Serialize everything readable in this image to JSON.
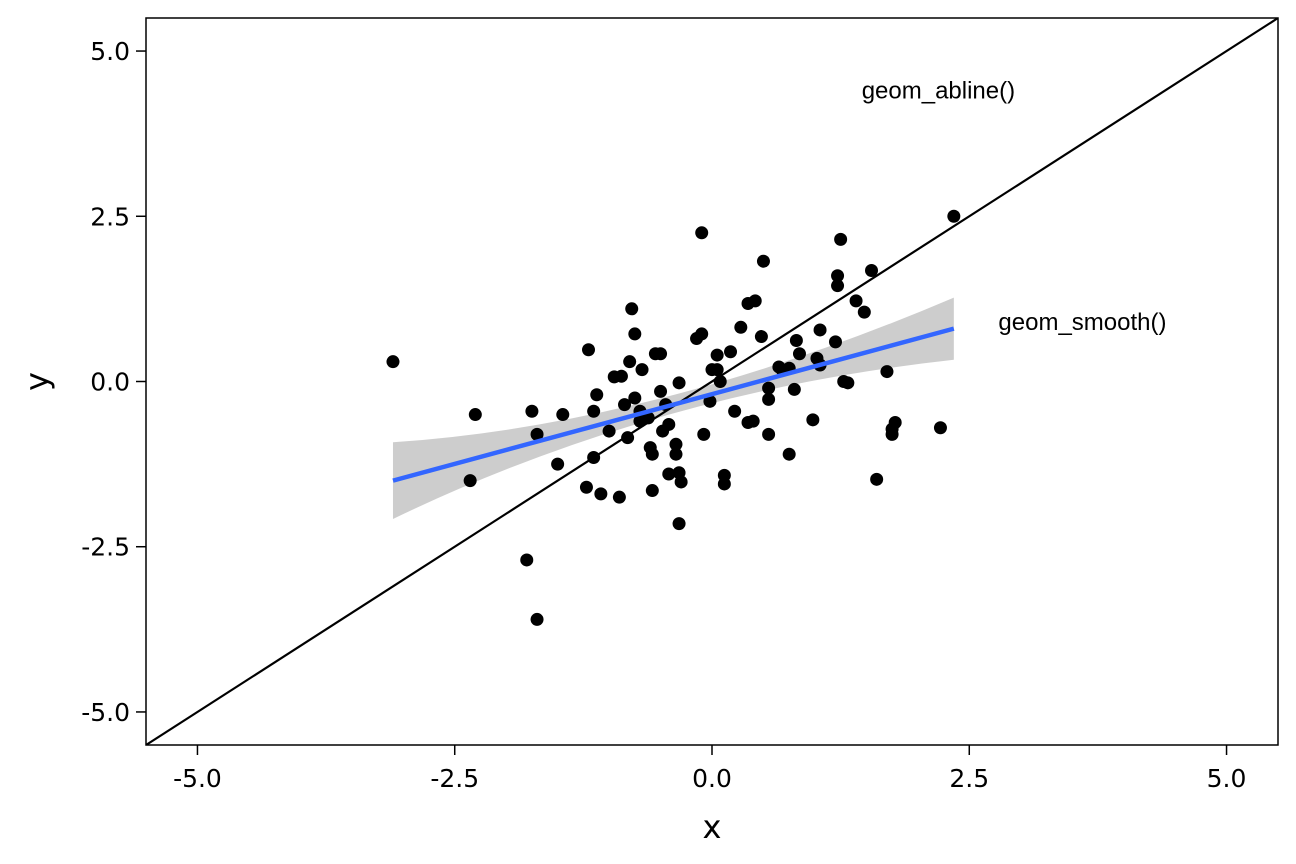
{
  "chart_data": {
    "type": "scatter",
    "title": "",
    "xlabel": "x",
    "ylabel": "y",
    "xlim": [
      -5.5,
      5.5
    ],
    "ylim": [
      -5.5,
      5.5
    ],
    "x_ticks": [
      -5.0,
      -2.5,
      0.0,
      2.5,
      5.0
    ],
    "y_ticks": [
      -5.0,
      -2.5,
      0.0,
      2.5,
      5.0
    ],
    "x_tick_labels": [
      "-5.0",
      "-2.5",
      "0.0",
      "2.5",
      "5.0"
    ],
    "y_tick_labels": [
      "-5.0",
      "-2.5",
      "0.0",
      "2.5",
      "5.0"
    ],
    "grid": false,
    "points": [
      {
        "x": -3.1,
        "y": 0.3
      },
      {
        "x": -2.3,
        "y": -0.5
      },
      {
        "x": -2.35,
        "y": -1.5
      },
      {
        "x": -1.8,
        "y": -2.7
      },
      {
        "x": -1.7,
        "y": -3.6
      },
      {
        "x": -1.75,
        "y": -0.45
      },
      {
        "x": -1.7,
        "y": -0.8
      },
      {
        "x": -1.45,
        "y": -0.5
      },
      {
        "x": -1.5,
        "y": -1.25
      },
      {
        "x": -1.2,
        "y": 0.48
      },
      {
        "x": -1.15,
        "y": -0.45
      },
      {
        "x": -1.15,
        "y": -1.15
      },
      {
        "x": -1.12,
        "y": -0.2
      },
      {
        "x": -1.22,
        "y": -1.6
      },
      {
        "x": -1.08,
        "y": -1.7
      },
      {
        "x": -1.0,
        "y": -0.75
      },
      {
        "x": -0.95,
        "y": 0.07
      },
      {
        "x": -0.88,
        "y": 0.08
      },
      {
        "x": -0.9,
        "y": -1.75
      },
      {
        "x": -0.85,
        "y": -0.35
      },
      {
        "x": -0.82,
        "y": -0.85
      },
      {
        "x": -0.8,
        "y": 0.3
      },
      {
        "x": -0.78,
        "y": 1.1
      },
      {
        "x": -0.75,
        "y": 0.72
      },
      {
        "x": -0.75,
        "y": -0.25
      },
      {
        "x": -0.7,
        "y": -0.45
      },
      {
        "x": -0.7,
        "y": -0.6
      },
      {
        "x": -0.68,
        "y": 0.18
      },
      {
        "x": -0.62,
        "y": -0.55
      },
      {
        "x": -0.6,
        "y": -1.0
      },
      {
        "x": -0.58,
        "y": -1.1
      },
      {
        "x": -0.58,
        "y": -1.65
      },
      {
        "x": -0.55,
        "y": 0.42
      },
      {
        "x": -0.5,
        "y": 0.42
      },
      {
        "x": -0.5,
        "y": -0.15
      },
      {
        "x": -0.48,
        "y": -0.75
      },
      {
        "x": -0.45,
        "y": -0.35
      },
      {
        "x": -0.42,
        "y": -1.4
      },
      {
        "x": -0.42,
        "y": -0.65
      },
      {
        "x": -0.35,
        "y": -0.95
      },
      {
        "x": -0.35,
        "y": -1.1
      },
      {
        "x": -0.32,
        "y": -1.38
      },
      {
        "x": -0.3,
        "y": -1.52
      },
      {
        "x": -0.32,
        "y": -2.15
      },
      {
        "x": -0.32,
        "y": -0.02
      },
      {
        "x": -0.15,
        "y": 0.65
      },
      {
        "x": -0.1,
        "y": 2.25
      },
      {
        "x": -0.1,
        "y": 0.72
      },
      {
        "x": -0.08,
        "y": -0.8
      },
      {
        "x": -0.02,
        "y": -0.3
      },
      {
        "x": 0.0,
        "y": 0.18
      },
      {
        "x": 0.05,
        "y": 0.4
      },
      {
        "x": 0.05,
        "y": 0.18
      },
      {
        "x": 0.08,
        "y": 0.0
      },
      {
        "x": 0.12,
        "y": -1.42
      },
      {
        "x": 0.12,
        "y": -1.55
      },
      {
        "x": 0.18,
        "y": 0.45
      },
      {
        "x": 0.22,
        "y": -0.45
      },
      {
        "x": 0.28,
        "y": 0.82
      },
      {
        "x": 0.35,
        "y": 1.18
      },
      {
        "x": 0.35,
        "y": -0.62
      },
      {
        "x": 0.4,
        "y": -0.6
      },
      {
        "x": 0.42,
        "y": 1.22
      },
      {
        "x": 0.48,
        "y": 0.68
      },
      {
        "x": 0.5,
        "y": 1.82
      },
      {
        "x": 0.55,
        "y": -0.1
      },
      {
        "x": 0.55,
        "y": -0.27
      },
      {
        "x": 0.55,
        "y": -0.8
      },
      {
        "x": 0.65,
        "y": 0.22
      },
      {
        "x": 0.68,
        "y": 0.18
      },
      {
        "x": 0.75,
        "y": 0.2
      },
      {
        "x": 0.75,
        "y": -1.1
      },
      {
        "x": 0.8,
        "y": -0.12
      },
      {
        "x": 0.82,
        "y": 0.62
      },
      {
        "x": 0.85,
        "y": 0.42
      },
      {
        "x": 0.98,
        "y": -0.58
      },
      {
        "x": 1.02,
        "y": 0.35
      },
      {
        "x": 1.05,
        "y": 0.25
      },
      {
        "x": 1.05,
        "y": 0.78
      },
      {
        "x": 1.2,
        "y": 0.6
      },
      {
        "x": 1.22,
        "y": 1.6
      },
      {
        "x": 1.22,
        "y": 1.45
      },
      {
        "x": 1.25,
        "y": 2.15
      },
      {
        "x": 1.28,
        "y": 0.0
      },
      {
        "x": 1.32,
        "y": -0.02
      },
      {
        "x": 1.4,
        "y": 1.22
      },
      {
        "x": 1.48,
        "y": 1.05
      },
      {
        "x": 1.55,
        "y": 1.68
      },
      {
        "x": 1.6,
        "y": -1.48
      },
      {
        "x": 1.7,
        "y": 0.15
      },
      {
        "x": 1.75,
        "y": -0.72
      },
      {
        "x": 1.75,
        "y": -0.8
      },
      {
        "x": 1.78,
        "y": -0.62
      },
      {
        "x": 2.22,
        "y": -0.7
      },
      {
        "x": 2.35,
        "y": 2.5
      }
    ],
    "abline": {
      "intercept": 0,
      "slope": 1,
      "label": "geom_abline()",
      "label_x": 2.2,
      "label_y": 4.4
    },
    "smooth": {
      "method": "linear",
      "x_range": [
        -3.1,
        2.35
      ],
      "fit_at_min": -1.5,
      "fit_at_max": 0.8,
      "ci_lower_at_min": -2.08,
      "ci_upper_at_min": -0.92,
      "ci_lower_at_max": 0.33,
      "ci_upper_at_max": 1.27,
      "ci_lower_at_center": -0.52,
      "ci_upper_at_center": -0.24,
      "center_x": -0.55,
      "label": "geom_smooth()",
      "label_x": 3.6,
      "label_y": 0.9
    },
    "colors": {
      "points": "#000000",
      "smooth_line": "#3366FF",
      "ribbon": "#C8C8C8",
      "abline": "#000000",
      "panel_border": "#000000"
    }
  }
}
